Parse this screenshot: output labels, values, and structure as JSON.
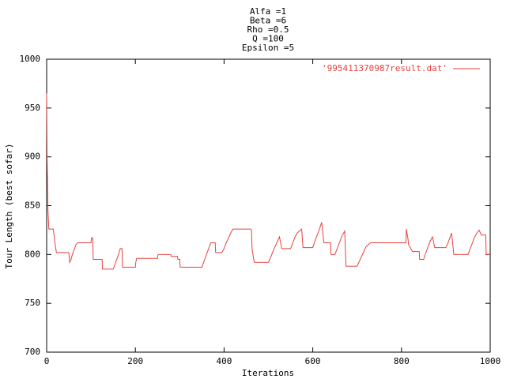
{
  "chart_data": {
    "type": "line",
    "title": [
      "Alfa =1",
      "Beta =6",
      "Rho =0.5",
      "Q =100",
      "Epsilon =5"
    ],
    "xlabel": "Iterations",
    "ylabel": "Tour Length (best sofar)",
    "xlim": [
      0,
      1000
    ],
    "ylim": [
      700,
      1000
    ],
    "xticks": [
      0,
      200,
      400,
      600,
      800,
      1000
    ],
    "yticks": [
      700,
      750,
      800,
      850,
      900,
      950,
      1000
    ],
    "legend": "top-right",
    "x": [
      0,
      1,
      3,
      5,
      15,
      18,
      20,
      22,
      50,
      52,
      55,
      58,
      62,
      66,
      70,
      100,
      101,
      104,
      105,
      125,
      126,
      150,
      154,
      158,
      162,
      166,
      170,
      171,
      200,
      201,
      203,
      250,
      251,
      280,
      281,
      295,
      296,
      300,
      301,
      350,
      354,
      358,
      362,
      366,
      370,
      380,
      381,
      395,
      400,
      405,
      410,
      415,
      420,
      460,
      462,
      463,
      468,
      500,
      505,
      510,
      515,
      520,
      525,
      530,
      550,
      555,
      560,
      565,
      570,
      575,
      578,
      600,
      605,
      610,
      615,
      620,
      625,
      640,
      641,
      650,
      655,
      660,
      665,
      672,
      675,
      700,
      705,
      710,
      715,
      720,
      730,
      810,
      811,
      815,
      816,
      825,
      840,
      841,
      850,
      855,
      860,
      865,
      870,
      875,
      900,
      905,
      909,
      913,
      918,
      950,
      955,
      960,
      965,
      970,
      975,
      980,
      990,
      991,
      1000
    ],
    "series": [
      {
        "name": "'995411370987result.dat'",
        "color": "#e8413f",
        "values": [
          965,
          900,
          845,
          826,
          826,
          815,
          808,
          802,
          802,
          792,
          795,
          800,
          805,
          810,
          812,
          812,
          817,
          817,
          795,
          795,
          785,
          785,
          790,
          795,
          800,
          806,
          806,
          787,
          787,
          792,
          796,
          796,
          800,
          800,
          798,
          798,
          795,
          795,
          787,
          787,
          792,
          797,
          802,
          807,
          812,
          812,
          802,
          802,
          806,
          812,
          817,
          822,
          826,
          826,
          825,
          806,
          792,
          792,
          797,
          803,
          808,
          813,
          818,
          806,
          806,
          812,
          818,
          822,
          824,
          826,
          807,
          807,
          814,
          820,
          826,
          833,
          812,
          812,
          800,
          800,
          806,
          812,
          818,
          824,
          788,
          788,
          793,
          798,
          803,
          808,
          812,
          812,
          826,
          815,
          810,
          803,
          803,
          795,
          795,
          802,
          808,
          814,
          818,
          807,
          807,
          812,
          817,
          822,
          800,
          800,
          806,
          812,
          818,
          822,
          825,
          820,
          820,
          800,
          800
        ]
      }
    ]
  }
}
